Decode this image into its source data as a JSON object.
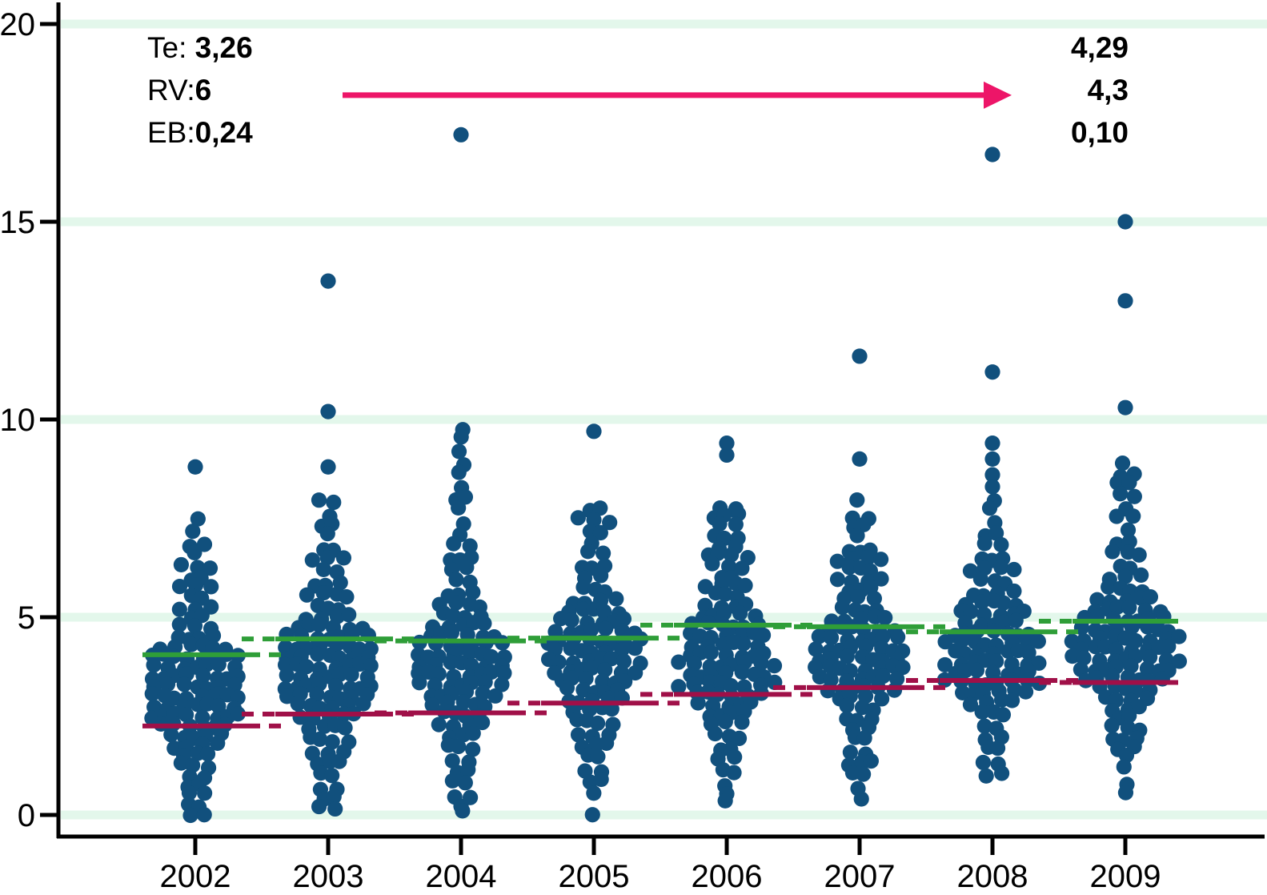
{
  "chart_data": {
    "type": "scatter",
    "variant": "beeswarm-strip-plot",
    "title": "",
    "xlabel": "",
    "ylabel": "",
    "categories": [
      "2002",
      "2003",
      "2004",
      "2005",
      "2006",
      "2007",
      "2008",
      "2009"
    ],
    "ylim": [
      0,
      20
    ],
    "yticks": [
      0,
      5,
      10,
      15,
      20
    ],
    "grid": "horizontal pale mint lines at each y tick",
    "legend_position": "none",
    "mean_lines": {
      "green": {
        "style": "solid with dashed connectors between years",
        "values": [
          4.05,
          4.45,
          4.4,
          4.47,
          4.8,
          4.76,
          4.63,
          4.9
        ]
      },
      "red": {
        "style": "solid with dashed connectors between years",
        "values": [
          2.25,
          2.55,
          2.58,
          2.83,
          3.05,
          3.22,
          3.4,
          3.35
        ]
      }
    },
    "series": [
      {
        "year": "2002",
        "outliers": [
          8.8
        ],
        "bins": [
          [
            7.45,
            1
          ],
          [
            7.15,
            1
          ],
          [
            6.85,
            2
          ],
          [
            6.6,
            1
          ],
          [
            6.3,
            3
          ],
          [
            6.0,
            2
          ],
          [
            5.75,
            3
          ],
          [
            5.5,
            2
          ],
          [
            5.25,
            3
          ],
          [
            5.0,
            2
          ],
          [
            4.75,
            3
          ],
          [
            4.5,
            4
          ],
          [
            4.25,
            6
          ],
          [
            4.0,
            8
          ],
          [
            3.75,
            7
          ],
          [
            3.5,
            8
          ],
          [
            3.25,
            7
          ],
          [
            3.0,
            8
          ],
          [
            2.75,
            7
          ],
          [
            2.5,
            8
          ],
          [
            2.25,
            6
          ],
          [
            2.0,
            5
          ],
          [
            1.75,
            4
          ],
          [
            1.5,
            3
          ],
          [
            1.25,
            3
          ],
          [
            1.0,
            2
          ],
          [
            0.75,
            2
          ],
          [
            0.5,
            2
          ],
          [
            0.25,
            2
          ],
          [
            0.05,
            2
          ]
        ]
      },
      {
        "year": "2003",
        "outliers": [
          13.5,
          10.2,
          8.8
        ],
        "bins": [
          [
            7.9,
            2
          ],
          [
            7.6,
            1
          ],
          [
            7.3,
            2
          ],
          [
            7.05,
            1
          ],
          [
            6.75,
            2
          ],
          [
            6.45,
            3
          ],
          [
            6.15,
            2
          ],
          [
            5.85,
            3
          ],
          [
            5.55,
            4
          ],
          [
            5.25,
            3
          ],
          [
            5.0,
            4
          ],
          [
            4.75,
            6
          ],
          [
            4.5,
            7
          ],
          [
            4.25,
            8
          ],
          [
            4.0,
            7
          ],
          [
            3.75,
            8
          ],
          [
            3.5,
            7
          ],
          [
            3.25,
            8
          ],
          [
            3.0,
            7
          ],
          [
            2.75,
            6
          ],
          [
            2.5,
            5
          ],
          [
            2.2,
            4
          ],
          [
            1.9,
            4
          ],
          [
            1.6,
            3
          ],
          [
            1.3,
            3
          ],
          [
            1.0,
            2
          ],
          [
            0.7,
            2
          ],
          [
            0.4,
            2
          ],
          [
            0.15,
            2
          ]
        ]
      },
      {
        "year": "2004",
        "outliers": [
          17.2
        ],
        "bins": [
          [
            9.8,
            1
          ],
          [
            9.5,
            1
          ],
          [
            9.2,
            1
          ],
          [
            8.9,
            1
          ],
          [
            8.6,
            1
          ],
          [
            8.3,
            1
          ],
          [
            8.0,
            2
          ],
          [
            7.7,
            1
          ],
          [
            7.4,
            1
          ],
          [
            7.1,
            1
          ],
          [
            6.8,
            2
          ],
          [
            6.5,
            3
          ],
          [
            6.2,
            2
          ],
          [
            5.9,
            2
          ],
          [
            5.6,
            3
          ],
          [
            5.3,
            4
          ],
          [
            5.05,
            4
          ],
          [
            4.8,
            5
          ],
          [
            4.55,
            6
          ],
          [
            4.3,
            7
          ],
          [
            4.05,
            8
          ],
          [
            3.8,
            7
          ],
          [
            3.55,
            8
          ],
          [
            3.3,
            7
          ],
          [
            3.05,
            6
          ],
          [
            2.8,
            5
          ],
          [
            2.55,
            4
          ],
          [
            2.3,
            4
          ],
          [
            2.0,
            3
          ],
          [
            1.7,
            3
          ],
          [
            1.4,
            2
          ],
          [
            1.1,
            2
          ],
          [
            0.8,
            2
          ],
          [
            0.5,
            2
          ],
          [
            0.25,
            1
          ],
          [
            0.05,
            1
          ]
        ]
      },
      {
        "year": "2005",
        "outliers": [
          9.7
        ],
        "bins": [
          [
            7.7,
            2
          ],
          [
            7.45,
            3
          ],
          [
            7.2,
            2
          ],
          [
            6.9,
            1
          ],
          [
            6.6,
            2
          ],
          [
            6.3,
            3
          ],
          [
            6.0,
            2
          ],
          [
            5.7,
            3
          ],
          [
            5.4,
            4
          ],
          [
            5.15,
            5
          ],
          [
            4.9,
            6
          ],
          [
            4.65,
            7
          ],
          [
            4.4,
            8
          ],
          [
            4.15,
            7
          ],
          [
            3.9,
            8
          ],
          [
            3.65,
            7
          ],
          [
            3.4,
            6
          ],
          [
            3.15,
            5
          ],
          [
            2.9,
            5
          ],
          [
            2.65,
            4
          ],
          [
            2.35,
            4
          ],
          [
            2.05,
            3
          ],
          [
            1.75,
            3
          ],
          [
            1.45,
            2
          ],
          [
            1.15,
            2
          ],
          [
            0.85,
            2
          ],
          [
            0.5,
            1
          ],
          [
            0.05,
            1
          ]
        ]
      },
      {
        "year": "2006",
        "outliers": [
          9.4,
          9.1
        ],
        "bins": [
          [
            7.8,
            2
          ],
          [
            7.55,
            3
          ],
          [
            7.3,
            2
          ],
          [
            7.05,
            3
          ],
          [
            6.8,
            2
          ],
          [
            6.55,
            4
          ],
          [
            6.3,
            3
          ],
          [
            6.05,
            2
          ],
          [
            5.8,
            4
          ],
          [
            5.55,
            3
          ],
          [
            5.3,
            4
          ],
          [
            5.05,
            5
          ],
          [
            4.8,
            6
          ],
          [
            4.55,
            7
          ],
          [
            4.3,
            6
          ],
          [
            4.05,
            7
          ],
          [
            3.8,
            8
          ],
          [
            3.55,
            7
          ],
          [
            3.3,
            8
          ],
          [
            3.05,
            6
          ],
          [
            2.8,
            5
          ],
          [
            2.55,
            4
          ],
          [
            2.3,
            3
          ],
          [
            2.0,
            3
          ],
          [
            1.7,
            2
          ],
          [
            1.4,
            2
          ],
          [
            1.1,
            2
          ],
          [
            0.8,
            1
          ],
          [
            0.5,
            1
          ],
          [
            0.3,
            1
          ]
        ]
      },
      {
        "year": "2007",
        "outliers": [
          11.6,
          9.0
        ],
        "bins": [
          [
            7.9,
            1
          ],
          [
            7.55,
            2
          ],
          [
            7.3,
            2
          ],
          [
            7.0,
            1
          ],
          [
            6.7,
            3
          ],
          [
            6.45,
            4
          ],
          [
            6.2,
            3
          ],
          [
            5.95,
            4
          ],
          [
            5.7,
            3
          ],
          [
            5.45,
            3
          ],
          [
            5.2,
            4
          ],
          [
            4.95,
            5
          ],
          [
            4.7,
            6
          ],
          [
            4.45,
            7
          ],
          [
            4.2,
            8
          ],
          [
            3.95,
            7
          ],
          [
            3.7,
            8
          ],
          [
            3.45,
            7
          ],
          [
            3.2,
            6
          ],
          [
            2.95,
            4
          ],
          [
            2.7,
            3
          ],
          [
            2.45,
            3
          ],
          [
            2.2,
            2
          ],
          [
            1.9,
            2
          ],
          [
            1.6,
            2
          ],
          [
            1.3,
            3
          ],
          [
            1.0,
            2
          ],
          [
            0.7,
            1
          ],
          [
            0.45,
            1
          ]
        ]
      },
      {
        "year": "2008",
        "outliers": [
          16.7,
          11.2,
          9.4,
          9.0,
          8.6,
          8.3
        ],
        "bins": [
          [
            8.0,
            1
          ],
          [
            7.7,
            1
          ],
          [
            7.4,
            1
          ],
          [
            7.1,
            2
          ],
          [
            6.8,
            2
          ],
          [
            6.5,
            3
          ],
          [
            6.2,
            4
          ],
          [
            5.9,
            3
          ],
          [
            5.6,
            4
          ],
          [
            5.35,
            5
          ],
          [
            5.1,
            6
          ],
          [
            4.85,
            5
          ],
          [
            4.6,
            7
          ],
          [
            4.35,
            8
          ],
          [
            4.1,
            7
          ],
          [
            3.85,
            8
          ],
          [
            3.6,
            7
          ],
          [
            3.35,
            8
          ],
          [
            3.1,
            6
          ],
          [
            2.85,
            4
          ],
          [
            2.55,
            3
          ],
          [
            2.25,
            2
          ],
          [
            1.95,
            2
          ],
          [
            1.65,
            2
          ],
          [
            1.35,
            2
          ],
          [
            1.0,
            2
          ]
        ]
      },
      {
        "year": "2009",
        "outliers": [
          15.0,
          13.0,
          10.3
        ],
        "bins": [
          [
            8.9,
            1
          ],
          [
            8.6,
            2
          ],
          [
            8.35,
            2
          ],
          [
            8.1,
            2
          ],
          [
            7.8,
            1
          ],
          [
            7.5,
            2
          ],
          [
            7.2,
            1
          ],
          [
            6.9,
            2
          ],
          [
            6.6,
            3
          ],
          [
            6.3,
            2
          ],
          [
            6.0,
            3
          ],
          [
            5.7,
            4
          ],
          [
            5.45,
            5
          ],
          [
            5.2,
            6
          ],
          [
            4.95,
            7
          ],
          [
            4.7,
            8
          ],
          [
            4.45,
            9
          ],
          [
            4.2,
            8
          ],
          [
            3.95,
            9
          ],
          [
            3.7,
            8
          ],
          [
            3.45,
            7
          ],
          [
            3.2,
            5
          ],
          [
            2.95,
            4
          ],
          [
            2.7,
            3
          ],
          [
            2.45,
            2
          ],
          [
            2.2,
            3
          ],
          [
            1.95,
            3
          ],
          [
            1.7,
            2
          ],
          [
            1.45,
            1
          ],
          [
            1.2,
            1
          ],
          [
            0.8,
            1
          ],
          [
            0.5,
            1
          ]
        ]
      }
    ],
    "annotations": {
      "left_stats": [
        {
          "label": "Te: ",
          "value": "3,26"
        },
        {
          "label": "RV:",
          "value": "6"
        },
        {
          "label": "EB:",
          "value": "0,24"
        }
      ],
      "right_stats": [
        "4,29",
        "4,3",
        "0,10"
      ],
      "arrow": {
        "direction": "right",
        "y_value": 18.2
      }
    }
  },
  "colors": {
    "dot": "#11507d",
    "green_line": "#2f9e38",
    "red_line": "#a01048",
    "arrow": "#ed1568",
    "grid": "#e3f7eb",
    "axis": "#000000"
  }
}
